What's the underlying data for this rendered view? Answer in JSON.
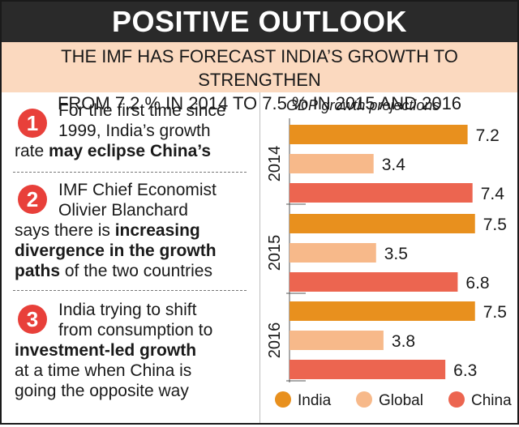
{
  "header": {
    "title": "POSITIVE OUTLOOK",
    "subtitle_line1": "THE IMF HAS FORECAST INDIA’S GROWTH TO STRENGTHEN",
    "subtitle_line2": "FROM 7.2 % IN 2014 TO 7.5 % IN 2015 AND 2016"
  },
  "points": [
    {
      "number": "1",
      "line1": "For the first time since",
      "line2": "1999, India’s growth",
      "line3_normal": "rate ",
      "line3_bold": "may eclipse China’s"
    },
    {
      "number": "2",
      "line1": "IMF Chief Economist",
      "line2": "Olivier Blanchard",
      "line3_normal": "says there is ",
      "line3_bold": "increasing",
      "line4_bold": "divergence in the growth",
      "line5_bold": "paths",
      "line5_normal": " of the two countries"
    },
    {
      "number": "3",
      "line1": "India trying to shift",
      "line2": "from consumption to",
      "line3_bold": "investment-led growth",
      "line4": "at a time when China is",
      "line5": "going the opposite way"
    }
  ],
  "colors": {
    "india": "#e8901e",
    "global": "#f7b98a",
    "china": "#ec6550",
    "badge": "#e8403a",
    "title_bg": "#2a2a2a",
    "subtitle_bg": "#fbd9bf"
  },
  "chart_data": {
    "type": "bar",
    "orientation": "horizontal",
    "title": "GDP growth projections",
    "categories": [
      "2014",
      "2015",
      "2016"
    ],
    "series": [
      {
        "name": "India",
        "values": [
          7.2,
          7.5,
          7.5
        ]
      },
      {
        "name": "Global",
        "values": [
          3.4,
          3.5,
          3.8
        ]
      },
      {
        "name": "China",
        "values": [
          7.4,
          6.8,
          6.3
        ]
      }
    ],
    "data_labels": [
      [
        "7.2",
        "3.4",
        "7.4"
      ],
      [
        "7.5",
        "3.5",
        "6.8"
      ],
      [
        "7.5",
        "3.8",
        "6.3"
      ]
    ],
    "xlim": [
      0,
      8
    ],
    "legend": "bottom",
    "grid": false
  }
}
